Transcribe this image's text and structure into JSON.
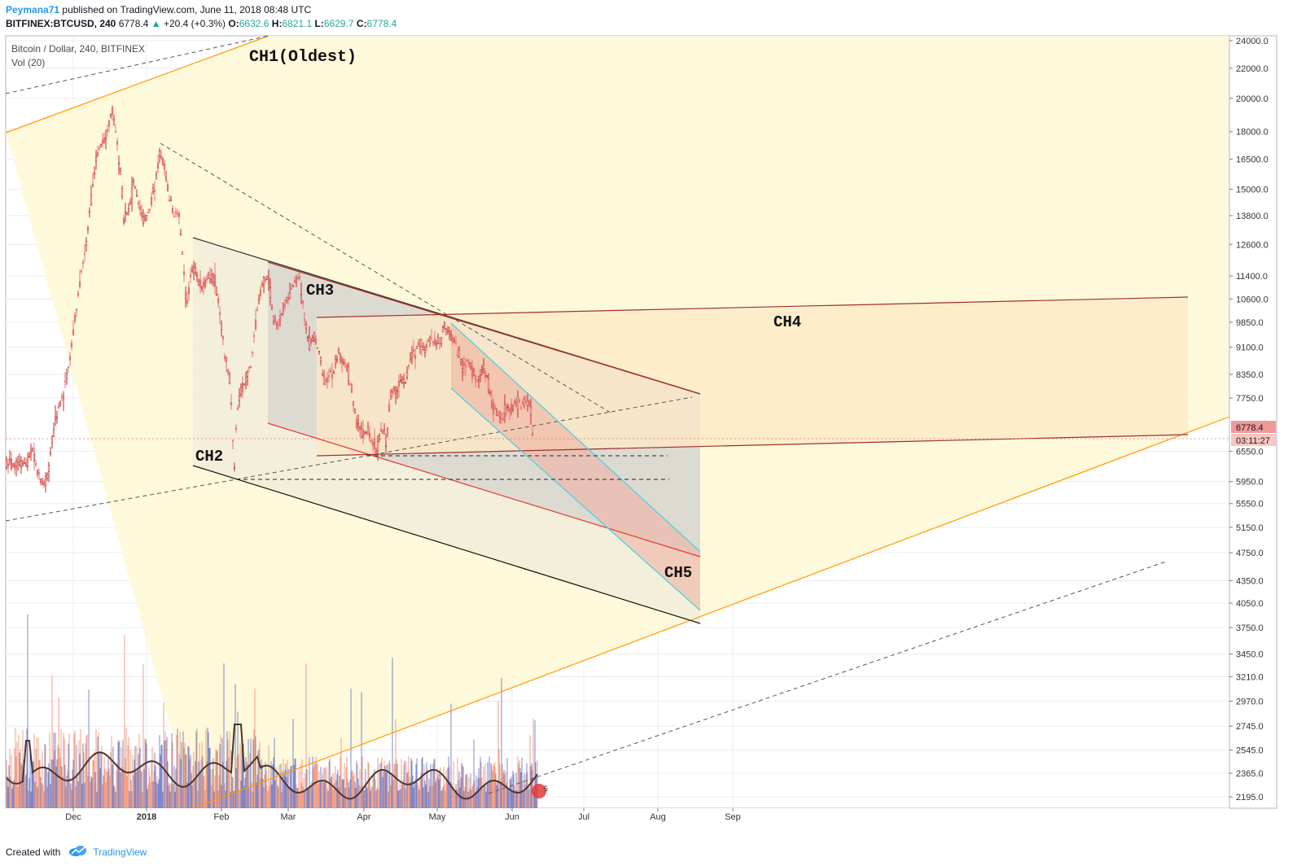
{
  "header": {
    "author": "Peymana71",
    "published": "published on TradingView.com, June 11, 2018 08:48 UTC",
    "symbol": "BITFINEX:BTCUSD, 240",
    "last": "6778.4",
    "arrow": "▲",
    "change": "+20.4 (+0.3%)",
    "o_label": "O:",
    "o_val": "6632.6",
    "h_label": "H:",
    "h_val": "6821.1",
    "l_label": "L:",
    "l_val": "6629.7",
    "c_label": "C:",
    "c_val": "6778.4"
  },
  "legend": {
    "title": "Bitcoin / Dollar, 240, BITFINEX",
    "vol": "Vol (20)"
  },
  "footer": {
    "created": "Created with",
    "brand": "TradingView"
  },
  "colors": {
    "up": "#26a69a",
    "down": "#ef5350",
    "candle": "#e57373",
    "brand": "#2196f3",
    "vol_up": "#5c6bc0",
    "vol_down": "#ef8a6a",
    "ch1_fill": "#fff9d9",
    "ch1_line": "#ff9800",
    "ch4_fill": "#fde8c4",
    "ch4_line": "#a0302a",
    "ch5_line": "#4dd0e1",
    "ch3_line": "#e53935"
  },
  "chart_data": {
    "type": "candlestick",
    "title": "Bitcoin / Dollar, 240, BITFINEX",
    "symbol": "BITFINEX:BTCUSD",
    "interval": "240",
    "scale": "log",
    "x_labels": [
      "Dec",
      "2018",
      "Feb",
      "Mar",
      "Apr",
      "May",
      "Jun",
      "Jul",
      "Aug",
      "Sep"
    ],
    "y_ticks": [
      24000.0,
      22000.0,
      20000.0,
      18000.0,
      16500.0,
      15000.0,
      13800.0,
      12600.0,
      11400.0,
      10600.0,
      9850.0,
      9100.0,
      8350.0,
      7750.0,
      6550.0,
      5950.0,
      5550.0,
      5150.0,
      4750.0,
      4350.0,
      4050.0,
      3750.0,
      3450.0,
      3210.0,
      2970.0,
      2745.0,
      2545.0,
      2365.0,
      2195.0
    ],
    "y_tick_labels": [
      "24000.0",
      "22000.0",
      "20000.0",
      "18000.0",
      "16500.0",
      "15000.0",
      "13800.0",
      "12600.0",
      "11400.0",
      "10600.0",
      "9850.0",
      "9100.0",
      "8350.0",
      "7750.0",
      "6550.0",
      "5950.0",
      "5550.0",
      "5150.0",
      "4750.0",
      "4350.0",
      "4050.0",
      "3750.0",
      "3450.0",
      "3210.0",
      "2970.0",
      "2745.0",
      "2545.0",
      "2365.0",
      "2195.0"
    ],
    "last_price": "6778.4",
    "countdown": "03:11:27",
    "price_path": [
      [
        "2017-11-12",
        6300
      ],
      [
        "2017-11-14",
        6600
      ],
      [
        "2017-11-16",
        6200
      ],
      [
        "2017-11-18",
        5900
      ],
      [
        "2017-11-20",
        6000
      ],
      [
        "2017-11-22",
        6700
      ],
      [
        "2017-11-24",
        7300
      ],
      [
        "2017-11-26",
        7700
      ],
      [
        "2017-11-28",
        8100
      ],
      [
        "2017-11-30",
        9000
      ],
      [
        "2017-12-02",
        10200
      ],
      [
        "2017-12-04",
        11300
      ],
      [
        "2017-12-06",
        12200
      ],
      [
        "2017-12-08",
        14200
      ],
      [
        "2017-12-10",
        16000
      ],
      [
        "2017-12-12",
        17200
      ],
      [
        "2017-12-14",
        17500
      ],
      [
        "2017-12-16",
        18500
      ],
      [
        "2017-12-17",
        19500
      ],
      [
        "2017-12-19",
        17500
      ],
      [
        "2017-12-21",
        15500
      ],
      [
        "2017-12-22",
        13500
      ],
      [
        "2017-12-24",
        14000
      ],
      [
        "2017-12-26",
        15300
      ],
      [
        "2017-12-28",
        14500
      ],
      [
        "2017-12-30",
        13500
      ],
      [
        "2018-01-01",
        13800
      ],
      [
        "2018-01-04",
        15200
      ],
      [
        "2018-01-06",
        17000
      ],
      [
        "2018-01-08",
        16000
      ],
      [
        "2018-01-10",
        14500
      ],
      [
        "2018-01-12",
        13800
      ],
      [
        "2018-01-14",
        13800
      ],
      [
        "2018-01-16",
        11500
      ],
      [
        "2018-01-17",
        10200
      ],
      [
        "2018-01-19",
        11500
      ],
      [
        "2018-01-21",
        11600
      ],
      [
        "2018-01-23",
        11000
      ],
      [
        "2018-01-25",
        11200
      ],
      [
        "2018-01-27",
        11400
      ],
      [
        "2018-01-29",
        11200
      ],
      [
        "2018-01-31",
        10200
      ],
      [
        "2018-02-02",
        8800
      ],
      [
        "2018-02-04",
        8200
      ],
      [
        "2018-02-06",
        6200
      ],
      [
        "2018-02-07",
        7500
      ],
      [
        "2018-02-09",
        8000
      ],
      [
        "2018-02-11",
        8200
      ],
      [
        "2018-02-13",
        8700
      ],
      [
        "2018-02-15",
        10000
      ],
      [
        "2018-02-17",
        11000
      ],
      [
        "2018-02-20",
        11400
      ],
      [
        "2018-02-22",
        10000
      ],
      [
        "2018-02-24",
        9700
      ],
      [
        "2018-02-26",
        10300
      ],
      [
        "2018-02-28",
        10500
      ],
      [
        "2018-03-02",
        11000
      ],
      [
        "2018-03-05",
        11500
      ],
      [
        "2018-03-07",
        10000
      ],
      [
        "2018-03-09",
        9200
      ],
      [
        "2018-03-11",
        9400
      ],
      [
        "2018-03-13",
        9100
      ],
      [
        "2018-03-15",
        8200
      ],
      [
        "2018-03-17",
        8300
      ],
      [
        "2018-03-19",
        8400
      ],
      [
        "2018-03-21",
        8900
      ],
      [
        "2018-03-23",
        8700
      ],
      [
        "2018-03-25",
        8500
      ],
      [
        "2018-03-27",
        7800
      ],
      [
        "2018-03-29",
        7100
      ],
      [
        "2018-03-31",
        6900
      ],
      [
        "2018-04-02",
        7000
      ],
      [
        "2018-04-04",
        6800
      ],
      [
        "2018-04-06",
        6600
      ],
      [
        "2018-04-08",
        7000
      ],
      [
        "2018-04-10",
        6800
      ],
      [
        "2018-04-12",
        7900
      ],
      [
        "2018-04-14",
        8000
      ],
      [
        "2018-04-16",
        8100
      ],
      [
        "2018-04-18",
        8200
      ],
      [
        "2018-04-20",
        8800
      ],
      [
        "2018-04-22",
        8900
      ],
      [
        "2018-04-24",
        9300
      ],
      [
        "2018-04-26",
        9000
      ],
      [
        "2018-04-28",
        9300
      ],
      [
        "2018-04-30",
        9200
      ],
      [
        "2018-05-02",
        9200
      ],
      [
        "2018-05-04",
        9700
      ],
      [
        "2018-05-06",
        9600
      ],
      [
        "2018-05-08",
        9300
      ],
      [
        "2018-05-10",
        9000
      ],
      [
        "2018-05-12",
        8500
      ],
      [
        "2018-05-14",
        8700
      ],
      [
        "2018-05-16",
        8400
      ],
      [
        "2018-05-18",
        8200
      ],
      [
        "2018-05-20",
        8500
      ],
      [
        "2018-05-22",
        8300
      ],
      [
        "2018-05-24",
        7600
      ],
      [
        "2018-05-26",
        7400
      ],
      [
        "2018-05-28",
        7300
      ],
      [
        "2018-05-30",
        7500
      ],
      [
        "2018-06-01",
        7500
      ],
      [
        "2018-06-03",
        7650
      ],
      [
        "2018-06-05",
        7550
      ],
      [
        "2018-06-07",
        7700
      ],
      [
        "2018-06-09",
        7600
      ],
      [
        "2018-06-10",
        6700
      ],
      [
        "2018-06-11",
        6778
      ]
    ],
    "annotations": [
      {
        "text": "CH1(Oldest)"
      },
      {
        "text": "CH2"
      },
      {
        "text": "CH3"
      },
      {
        "text": "CH4"
      },
      {
        "text": "CH5"
      }
    ],
    "volume": {
      "name": "Vol (20)"
    }
  }
}
